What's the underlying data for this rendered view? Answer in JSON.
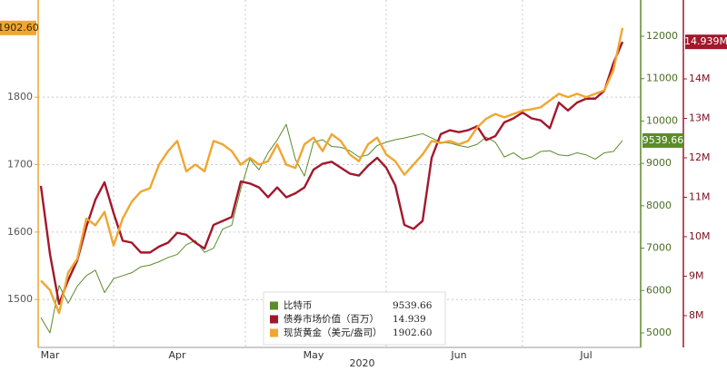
{
  "chart_data": {
    "type": "line",
    "xlabel": "2020",
    "categories": [
      null,
      "Mar",
      null,
      null,
      null,
      null,
      null,
      null,
      null,
      null,
      null,
      null,
      null,
      null,
      null,
      "Apr",
      null,
      null,
      null,
      null,
      null,
      null,
      null,
      null,
      null,
      null,
      null,
      null,
      null,
      null,
      "May",
      null,
      null,
      null,
      null,
      null,
      null,
      null,
      null,
      null,
      null,
      null,
      null,
      null,
      null,
      null,
      "Jun",
      null,
      null,
      null,
      null,
      null,
      null,
      null,
      null,
      null,
      null,
      null,
      null,
      null,
      "Jul",
      null,
      null,
      null,
      null
    ],
    "ylim": [
      1429,
      1944
    ],
    "yticks": [
      1500,
      1600,
      1700,
      1800
    ],
    "y2lim": [
      4657,
      12856
    ],
    "y2ticks": [
      5000,
      6000,
      7000,
      8000,
      9000,
      10000,
      11000,
      12000
    ],
    "y3lim": [
      7.195,
      16.0
    ],
    "y3ticks": [
      {
        "value": 8,
        "label": "8M"
      },
      {
        "value": 9,
        "label": "9M"
      },
      {
        "value": 10,
        "label": "10M"
      },
      {
        "value": 11,
        "label": "11M"
      },
      {
        "value": 12,
        "label": "12M"
      },
      {
        "value": 13,
        "label": "13M"
      },
      {
        "value": 14,
        "label": "14M"
      }
    ],
    "grid": true,
    "series": [
      {
        "name": "比特币",
        "color": "#5b8c2a",
        "axis": "y2",
        "legend_label": "9539.66",
        "flag_label": "9539.66",
        "values": [
          5360,
          5000,
          6120,
          5700,
          6100,
          6350,
          6480,
          5950,
          6280,
          6350,
          6420,
          6560,
          6600,
          6680,
          6780,
          6850,
          7080,
          7180,
          6900,
          7000,
          7450,
          7540,
          8400,
          9100,
          8850,
          9250,
          9550,
          9920,
          9100,
          8700,
          9500,
          9560,
          9400,
          9380,
          9300,
          9150,
          9200,
          9420,
          9500,
          9560,
          9600,
          9650,
          9700,
          9600,
          9500,
          9480,
          9420,
          9380,
          9450,
          9620,
          9500,
          9150,
          9250,
          9100,
          9150,
          9280,
          9300,
          9200,
          9180,
          9250,
          9200,
          9100,
          9250,
          9280,
          9539.66
        ]
      },
      {
        "name": "债券市场价值（百万）",
        "color": "#a3172c",
        "axis": "y3",
        "legend_label": "14.939",
        "flag_label": "14.939M",
        "values": [
          11.29,
          9.56,
          8.3,
          8.9,
          9.4,
          10.25,
          10.94,
          11.38,
          10.6,
          9.9,
          9.85,
          9.6,
          9.6,
          9.75,
          9.85,
          10.1,
          10.05,
          9.85,
          9.7,
          10.3,
          10.4,
          10.5,
          11.4,
          11.35,
          11.25,
          11.0,
          11.25,
          11.0,
          11.1,
          11.25,
          11.7,
          11.85,
          11.9,
          11.75,
          11.6,
          11.55,
          11.8,
          12.0,
          11.75,
          11.3,
          10.3,
          10.2,
          10.4,
          12.0,
          12.6,
          12.7,
          12.65,
          12.7,
          12.8,
          12.45,
          12.55,
          12.9,
          13.0,
          13.15,
          13.0,
          12.95,
          12.75,
          13.4,
          13.2,
          13.4,
          13.5,
          13.5,
          13.7,
          14.4,
          14.939
        ]
      },
      {
        "name": "现货黄金（美元/盎司）",
        "color": "#f0a630",
        "axis": "y",
        "legend_label": "1902.60",
        "flag_label": "1902.60",
        "values": [
          1528,
          1514,
          1480,
          1540,
          1560,
          1620,
          1610,
          1630,
          1580,
          1620,
          1645,
          1660,
          1665,
          1700,
          1720,
          1735,
          1690,
          1700,
          1690,
          1735,
          1730,
          1720,
          1700,
          1710,
          1700,
          1705,
          1730,
          1700,
          1695,
          1730,
          1740,
          1720,
          1745,
          1735,
          1715,
          1705,
          1730,
          1740,
          1715,
          1705,
          1685,
          1700,
          1715,
          1735,
          1732,
          1735,
          1730,
          1735,
          1755,
          1768,
          1775,
          1770,
          1775,
          1780,
          1782,
          1785,
          1795,
          1805,
          1800,
          1805,
          1800,
          1805,
          1810,
          1840,
          1902.6
        ]
      }
    ]
  }
}
